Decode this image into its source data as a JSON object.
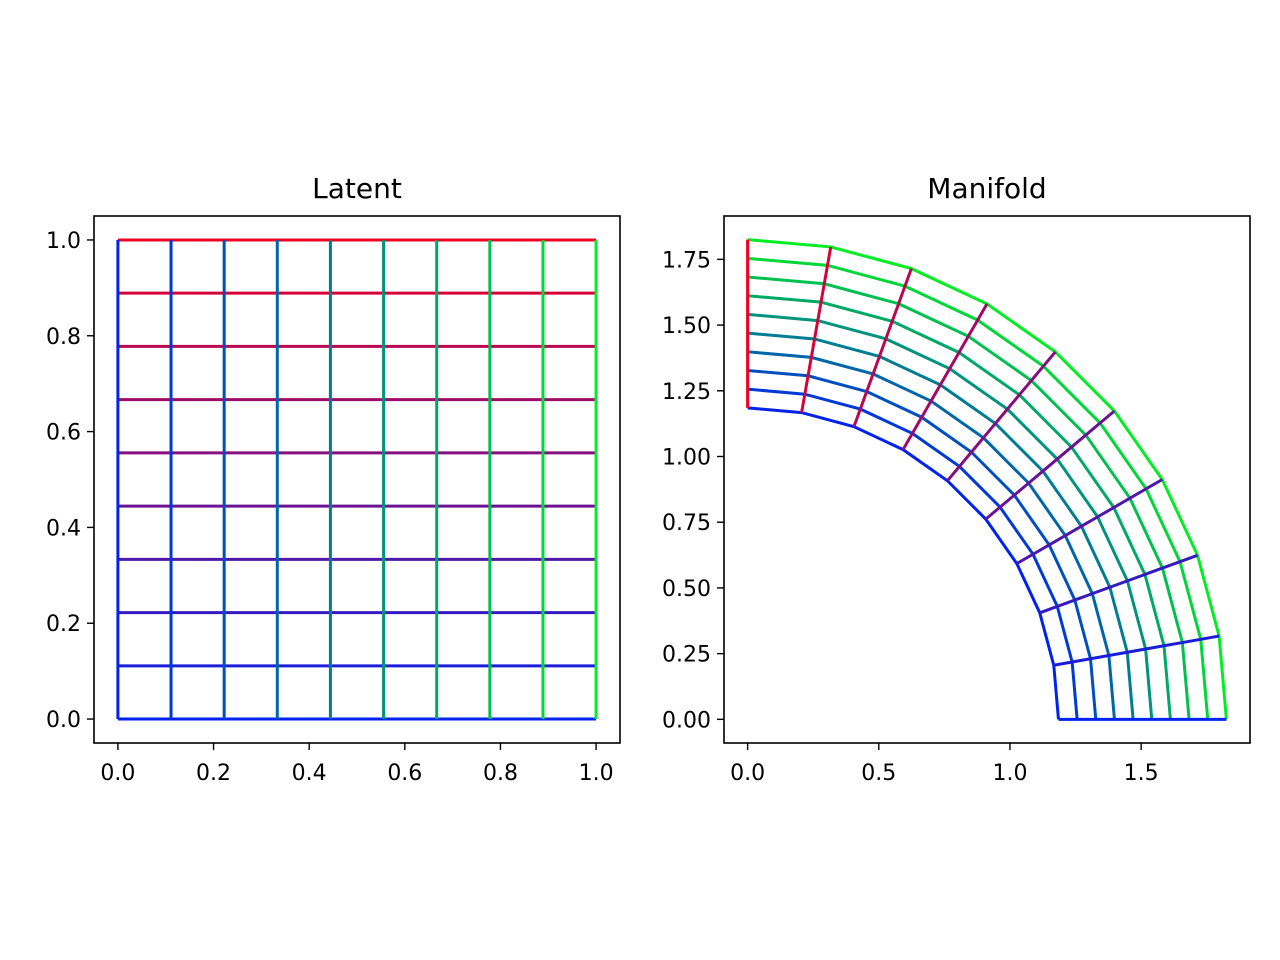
{
  "chart_data": [
    {
      "type": "line",
      "title": "Latent",
      "grid_lines": 10,
      "u_values": [
        0,
        0.1111,
        0.2222,
        0.3333,
        0.4444,
        0.5556,
        0.6667,
        0.7778,
        0.8889,
        1.0
      ],
      "v_values": [
        0,
        0.1111,
        0.2222,
        0.3333,
        0.4444,
        0.5556,
        0.6667,
        0.7778,
        0.8889,
        1.0
      ],
      "xlim": [
        -0.05,
        1.05
      ],
      "ylim": [
        -0.05,
        1.05
      ],
      "xticks": [
        {
          "value": 0.0,
          "label": "0.0"
        },
        {
          "value": 0.2,
          "label": "0.2"
        },
        {
          "value": 0.4,
          "label": "0.4"
        },
        {
          "value": 0.6,
          "label": "0.6"
        },
        {
          "value": 0.8,
          "label": "0.8"
        },
        {
          "value": 1.0,
          "label": "1.0"
        }
      ],
      "yticks": [
        {
          "value": 0.0,
          "label": "0.0"
        },
        {
          "value": 0.2,
          "label": "0.2"
        },
        {
          "value": 0.4,
          "label": "0.4"
        },
        {
          "value": 0.6,
          "label": "0.6"
        },
        {
          "value": 0.8,
          "label": "0.8"
        },
        {
          "value": 1.0,
          "label": "1.0"
        }
      ],
      "line_colors": {
        "constant_u_from": "#0022ee",
        "constant_u_to": "#00ee22",
        "constant_v_from": "#0022ee",
        "constant_v_to": "#ee0022"
      }
    },
    {
      "type": "line",
      "title": "Manifold",
      "grid_lines": 10,
      "inner_radius": 1.185,
      "outer_radius": 1.825,
      "angle_range_degrees": [
        0,
        90
      ],
      "xlim": [
        -0.09,
        1.915
      ],
      "ylim": [
        -0.09,
        1.915
      ],
      "xticks": [
        {
          "value": 0.0,
          "label": "0.0"
        },
        {
          "value": 0.5,
          "label": "0.5"
        },
        {
          "value": 1.0,
          "label": "1.0"
        },
        {
          "value": 1.5,
          "label": "1.5"
        }
      ],
      "yticks": [
        {
          "value": 0.0,
          "label": "0.00"
        },
        {
          "value": 0.25,
          "label": "0.25"
        },
        {
          "value": 0.5,
          "label": "0.50"
        },
        {
          "value": 0.75,
          "label": "0.75"
        },
        {
          "value": 1.0,
          "label": "1.00"
        },
        {
          "value": 1.25,
          "label": "1.25"
        },
        {
          "value": 1.5,
          "label": "1.50"
        },
        {
          "value": 1.75,
          "label": "1.75"
        }
      ],
      "line_colors": {
        "arc_from": "#0022ee",
        "arc_to": "#00ee22",
        "radial_from": "#0022ee",
        "radial_to": "#ee0022"
      }
    }
  ]
}
